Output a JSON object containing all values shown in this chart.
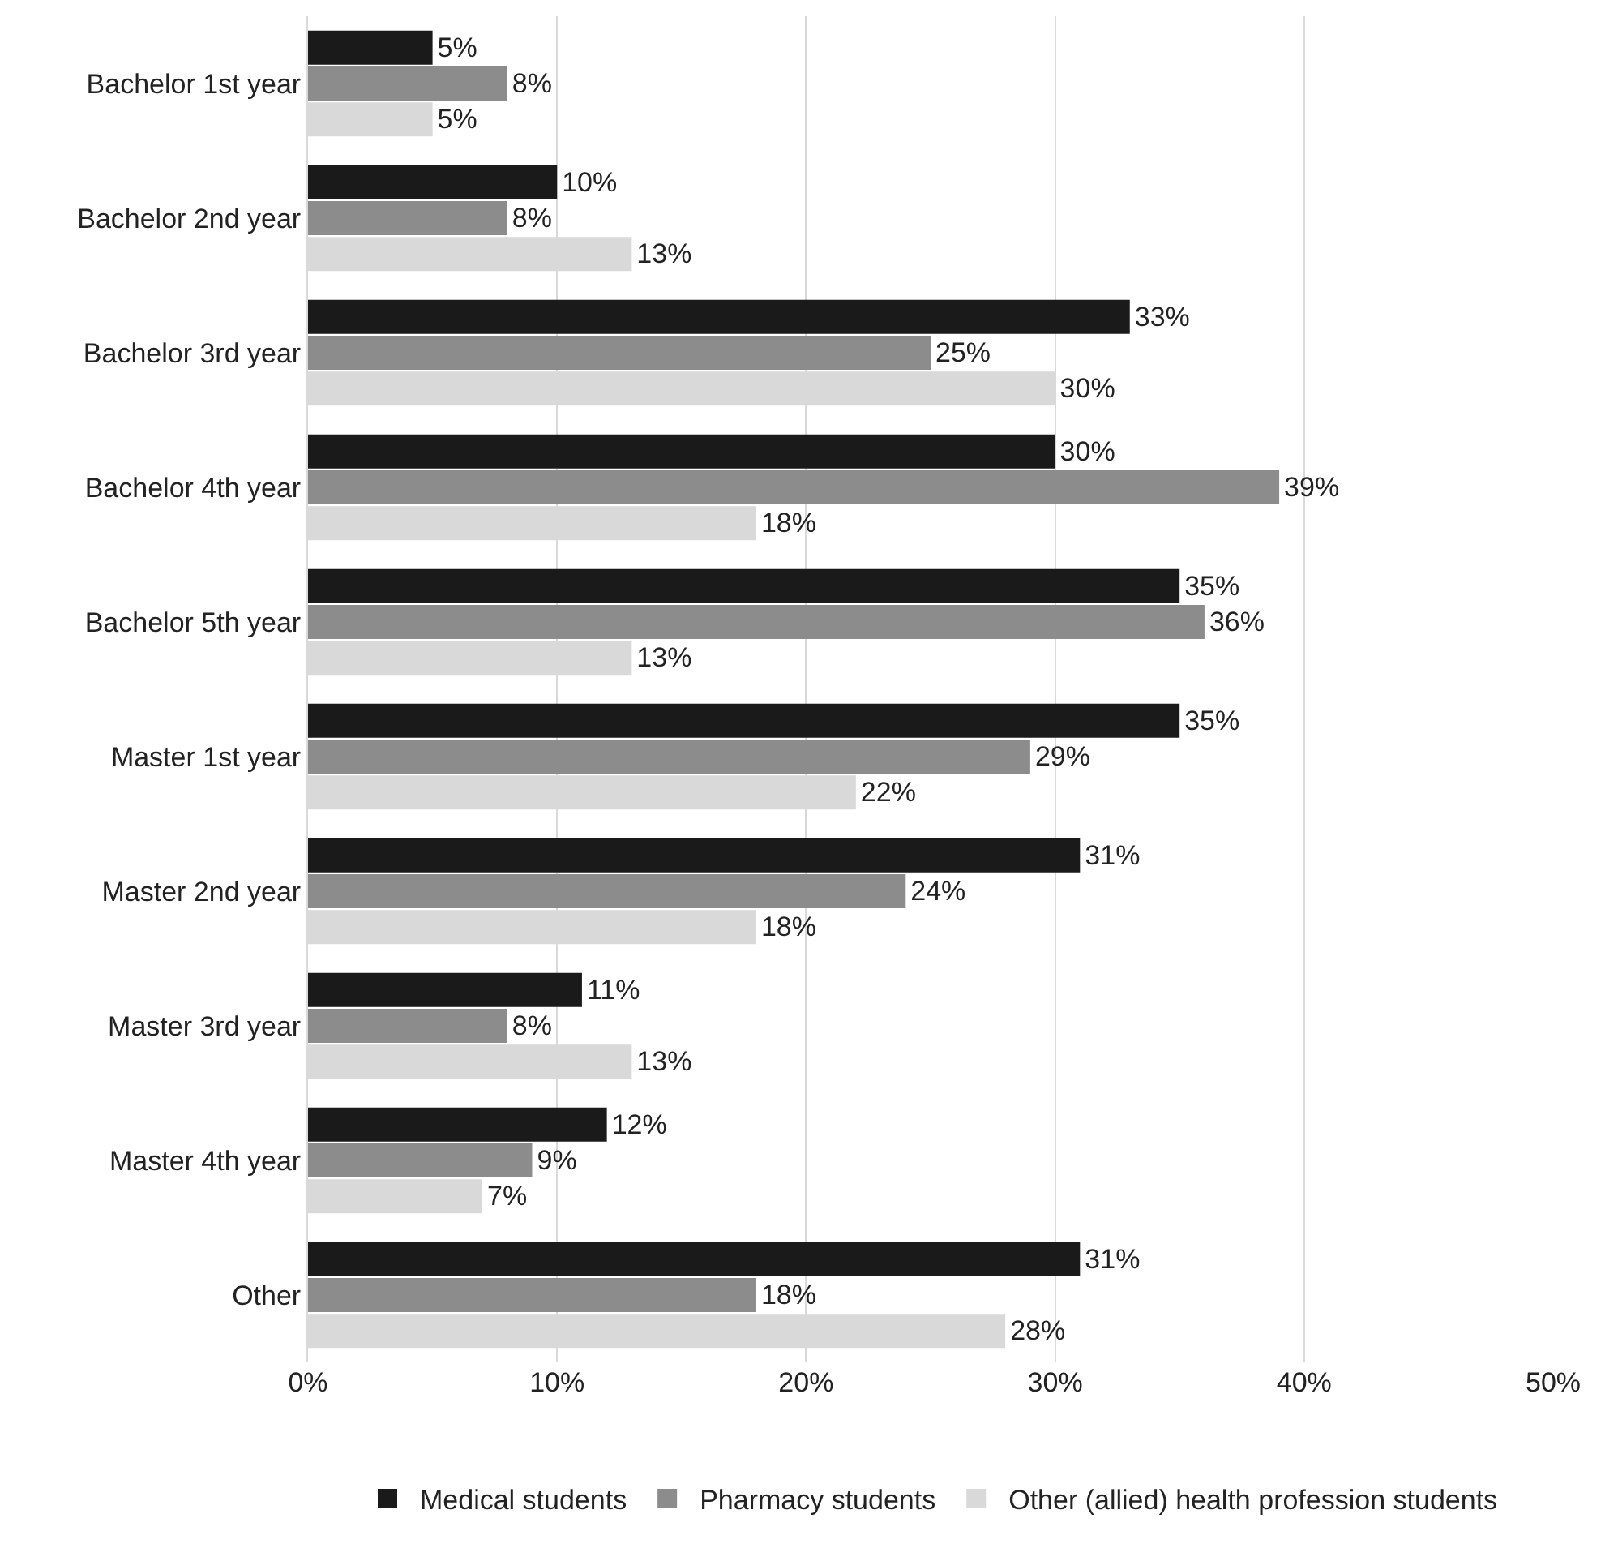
{
  "chart_data": {
    "type": "bar",
    "orientation": "horizontal",
    "categories": [
      "Bachelor 1st year",
      "Bachelor 2nd year",
      "Bachelor 3rd year",
      "Bachelor 4th year",
      "Bachelor 5th year",
      "Master 1st year",
      "Master 2nd year",
      "Master 3rd year",
      "Master 4th year",
      "Other"
    ],
    "series": [
      {
        "name": "Medical students",
        "color": "#1a1a1a",
        "values": [
          5,
          10,
          33,
          30,
          35,
          35,
          31,
          11,
          12,
          31
        ],
        "value_labels": [
          "5%",
          "10%",
          "33%",
          "30%",
          "35%",
          "35%",
          "31%",
          "11%",
          "12%",
          "31%"
        ]
      },
      {
        "name": "Pharmacy students",
        "color": "#8c8c8c",
        "values": [
          8,
          8,
          25,
          39,
          36,
          29,
          24,
          8,
          9,
          18
        ],
        "value_labels": [
          "8%",
          "8%",
          "25%",
          "39%",
          "36%",
          "29%",
          "24%",
          "8%",
          "9%",
          "18%"
        ]
      },
      {
        "name": "Other (allied) health profession students",
        "color": "#d9d9d9",
        "values": [
          5,
          13,
          30,
          18,
          13,
          22,
          18,
          13,
          7,
          28
        ],
        "value_labels": [
          "5%",
          "13%",
          "30%",
          "18%",
          "13%",
          "22%",
          "18%",
          "13%",
          "7%",
          "28%"
        ]
      }
    ],
    "xlim": [
      0,
      50
    ],
    "xticks": [
      {
        "value": 0,
        "label": "0%"
      },
      {
        "value": 10,
        "label": "10%"
      },
      {
        "value": 20,
        "label": "20%"
      },
      {
        "value": 30,
        "label": "30%"
      },
      {
        "value": 40,
        "label": "40%"
      },
      {
        "value": 50,
        "label": "50%"
      }
    ],
    "grid": "x",
    "legend": "bottom"
  }
}
